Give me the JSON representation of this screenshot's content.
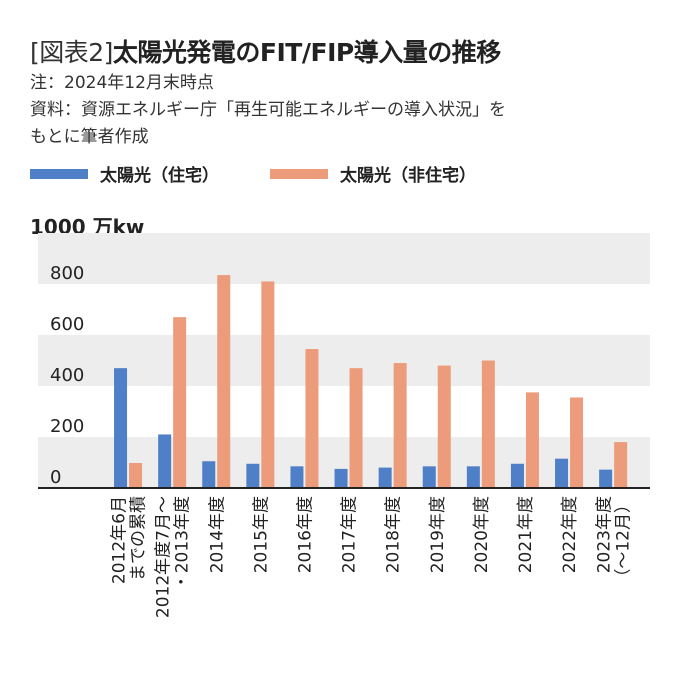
{
  "header": {
    "fig_label": "[図表2]",
    "title": "太陽光発電のFIT/FIP導入量の推移",
    "note1": "注：2024年12月末時点",
    "note2": "資料：資源エネルギー庁「再生可能エネルギーの導入状況」を",
    "note3": "もとに筆者作成"
  },
  "legend": {
    "residential": "太陽光（住宅）",
    "nonresidential": "太陽光（非住宅）"
  },
  "colors": {
    "residential": "#4f7fc6",
    "nonresidential": "#ec9c7a",
    "band": "#ededed",
    "axis": "#222222"
  },
  "chart_data": {
    "type": "bar",
    "unit_label": "1000 万kw",
    "yticks": [
      "800",
      "600",
      "400",
      "200",
      "0"
    ],
    "ylim": [
      0,
      1000
    ],
    "categories": [
      [
        "2012年6月",
        "までの累積"
      ],
      [
        "2012年度7月～",
        "・2013年度"
      ],
      [
        "2014年度"
      ],
      [
        "2015年度"
      ],
      [
        "2016年度"
      ],
      [
        "2017年度"
      ],
      [
        "2018年度"
      ],
      [
        "2019年度"
      ],
      [
        "2020年度"
      ],
      [
        "2021年度"
      ],
      [
        "2022年度"
      ],
      [
        "2023年度",
        "（～12月）"
      ]
    ],
    "series": [
      {
        "name": "太陽光（住宅）",
        "values": [
          470,
          210,
          105,
          95,
          85,
          75,
          80,
          85,
          85,
          95,
          115,
          72
        ]
      },
      {
        "name": "太陽光（非住宅）",
        "values": [
          98,
          670,
          835,
          810,
          545,
          470,
          490,
          480,
          500,
          375,
          355,
          180
        ]
      }
    ]
  }
}
